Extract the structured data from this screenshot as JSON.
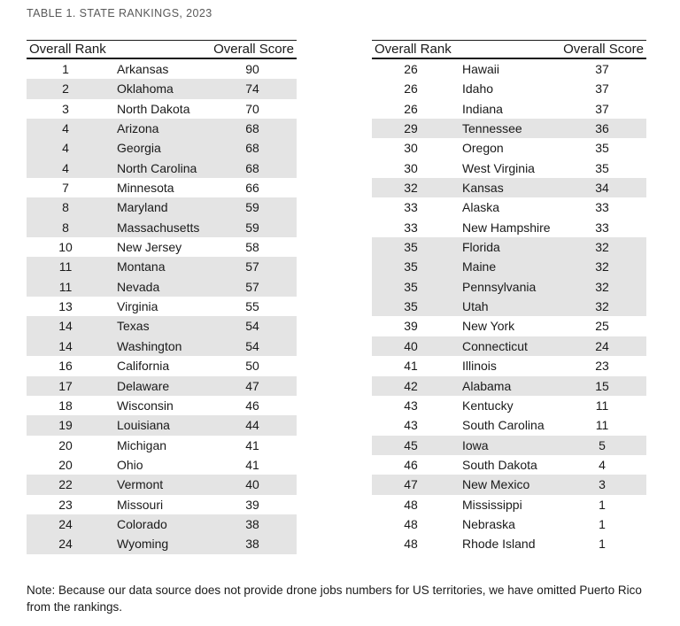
{
  "title": "TABLE 1. STATE RANKINGS, 2023",
  "columns": {
    "rank": "Overall Rank",
    "score": "Overall Score"
  },
  "note": {
    "line1": "Note: Because our data source does not provide drone jobs numbers for US territories, we have omitted Puerto Rico",
    "line2": "from the rankings."
  },
  "colors": {
    "shaded_row": "#e4e4e4",
    "border": "#1a1a1a",
    "body_text": "#1a1a1a",
    "title_text": "#595959",
    "background": "#ffffff"
  },
  "tables": [
    {
      "side": "left",
      "rows": [
        {
          "rank": "1",
          "state": "Arkansas",
          "score": "90",
          "shaded": false
        },
        {
          "rank": "2",
          "state": "Oklahoma",
          "score": "74",
          "shaded": true
        },
        {
          "rank": "3",
          "state": "North Dakota",
          "score": "70",
          "shaded": false
        },
        {
          "rank": "4",
          "state": "Arizona",
          "score": "68",
          "shaded": true
        },
        {
          "rank": "4",
          "state": "Georgia",
          "score": "68",
          "shaded": true
        },
        {
          "rank": "4",
          "state": "North Carolina",
          "score": "68",
          "shaded": true
        },
        {
          "rank": "7",
          "state": "Minnesota",
          "score": "66",
          "shaded": false
        },
        {
          "rank": "8",
          "state": "Maryland",
          "score": "59",
          "shaded": true
        },
        {
          "rank": "8",
          "state": "Massachusetts",
          "score": "59",
          "shaded": true
        },
        {
          "rank": "10",
          "state": "New Jersey",
          "score": "58",
          "shaded": false
        },
        {
          "rank": "11",
          "state": "Montana",
          "score": "57",
          "shaded": true
        },
        {
          "rank": "11",
          "state": "Nevada",
          "score": "57",
          "shaded": true
        },
        {
          "rank": "13",
          "state": "Virginia",
          "score": "55",
          "shaded": false
        },
        {
          "rank": "14",
          "state": "Texas",
          "score": "54",
          "shaded": true
        },
        {
          "rank": "14",
          "state": "Washington",
          "score": "54",
          "shaded": true
        },
        {
          "rank": "16",
          "state": "California",
          "score": "50",
          "shaded": false
        },
        {
          "rank": "17",
          "state": "Delaware",
          "score": "47",
          "shaded": true
        },
        {
          "rank": "18",
          "state": "Wisconsin",
          "score": "46",
          "shaded": false
        },
        {
          "rank": "19",
          "state": "Louisiana",
          "score": "44",
          "shaded": true
        },
        {
          "rank": "20",
          "state": "Michigan",
          "score": "41",
          "shaded": false
        },
        {
          "rank": "20",
          "state": "Ohio",
          "score": "41",
          "shaded": false
        },
        {
          "rank": "22",
          "state": "Vermont",
          "score": "40",
          "shaded": true
        },
        {
          "rank": "23",
          "state": "Missouri",
          "score": "39",
          "shaded": false
        },
        {
          "rank": "24",
          "state": "Colorado",
          "score": "38",
          "shaded": true
        },
        {
          "rank": "24",
          "state": "Wyoming",
          "score": "38",
          "shaded": true
        }
      ]
    },
    {
      "side": "right",
      "rows": [
        {
          "rank": "26",
          "state": "Hawaii",
          "score": "37",
          "shaded": false
        },
        {
          "rank": "26",
          "state": "Idaho",
          "score": "37",
          "shaded": false
        },
        {
          "rank": "26",
          "state": "Indiana",
          "score": "37",
          "shaded": false
        },
        {
          "rank": "29",
          "state": "Tennessee",
          "score": "36",
          "shaded": true
        },
        {
          "rank": "30",
          "state": "Oregon",
          "score": "35",
          "shaded": false
        },
        {
          "rank": "30",
          "state": "West Virginia",
          "score": "35",
          "shaded": false
        },
        {
          "rank": "32",
          "state": "Kansas",
          "score": "34",
          "shaded": true
        },
        {
          "rank": "33",
          "state": "Alaska",
          "score": "33",
          "shaded": false
        },
        {
          "rank": "33",
          "state": "New Hampshire",
          "score": "33",
          "shaded": false
        },
        {
          "rank": "35",
          "state": "Florida",
          "score": "32",
          "shaded": true
        },
        {
          "rank": "35",
          "state": "Maine",
          "score": "32",
          "shaded": true
        },
        {
          "rank": "35",
          "state": "Pennsylvania",
          "score": "32",
          "shaded": true
        },
        {
          "rank": "35",
          "state": "Utah",
          "score": "32",
          "shaded": true
        },
        {
          "rank": "39",
          "state": "New York",
          "score": "25",
          "shaded": false
        },
        {
          "rank": "40",
          "state": "Connecticut",
          "score": "24",
          "shaded": true
        },
        {
          "rank": "41",
          "state": "Illinois",
          "score": "23",
          "shaded": false
        },
        {
          "rank": "42",
          "state": "Alabama",
          "score": "15",
          "shaded": true
        },
        {
          "rank": "43",
          "state": "Kentucky",
          "score": "11",
          "shaded": false
        },
        {
          "rank": "43",
          "state": "South Carolina",
          "score": "11",
          "shaded": false
        },
        {
          "rank": "45",
          "state": "Iowa",
          "score": "5",
          "shaded": true
        },
        {
          "rank": "46",
          "state": "South Dakota",
          "score": "4",
          "shaded": false
        },
        {
          "rank": "47",
          "state": "New Mexico",
          "score": "3",
          "shaded": true
        },
        {
          "rank": "48",
          "state": "Mississippi",
          "score": "1",
          "shaded": false
        },
        {
          "rank": "48",
          "state": "Nebraska",
          "score": "1",
          "shaded": false
        },
        {
          "rank": "48",
          "state": "Rhode Island",
          "score": "1",
          "shaded": false
        }
      ]
    }
  ]
}
